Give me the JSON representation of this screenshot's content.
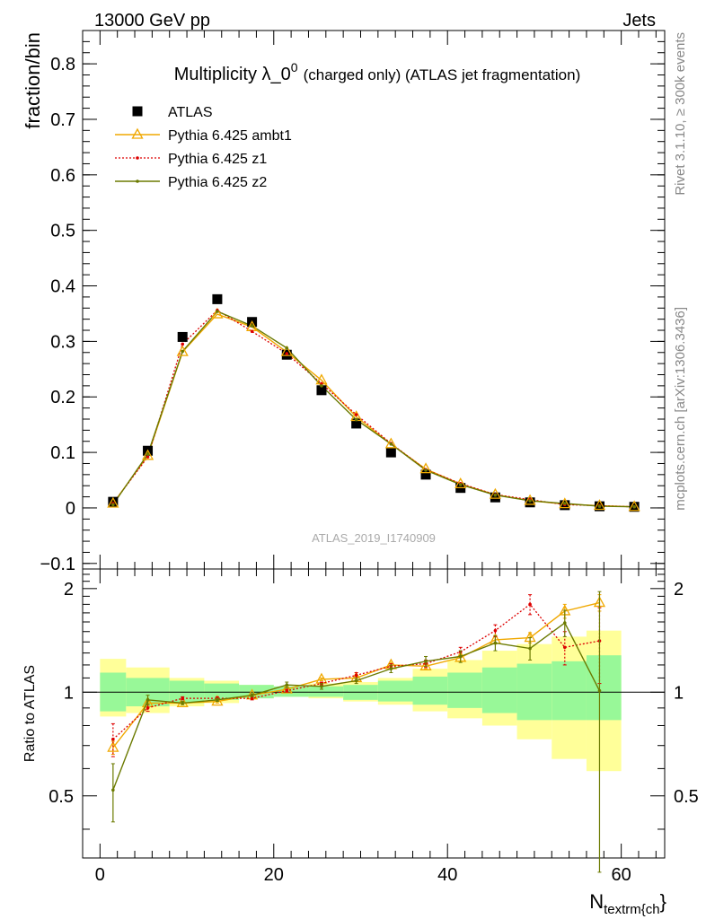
{
  "header": {
    "left": "13000 GeV pp",
    "right": "Jets"
  },
  "side_text": {
    "rivet": "Rivet 3.1.10, ≥ 300k events",
    "mcplots": "mcplots.cern.ch [arXiv:1306.3436]"
  },
  "watermark": "ATLAS_2019_I1740909",
  "colors": {
    "atlas": "#000000",
    "ambt1": "#f0a800",
    "z1": "#dd0000",
    "z2": "#6b7a00",
    "band_inner": "#98f898",
    "band_outer": "#ffff99"
  },
  "chart_data": [
    {
      "type": "scatter",
      "title": "Multiplicity λ_0⁰ (charged only) (ATLAS jet fragmentation)",
      "title_main": "Multiplicity λ_0",
      "title_sup": "0",
      "title_rest": "(charged only) (ATLAS jet fragmentation)",
      "ylabel": "fraction/bin",
      "xlabel_main": "N",
      "xlabel_sub": "textrm{ch",
      "xlabel_end": "}",
      "xlim": [
        -2,
        65
      ],
      "ylim": [
        -0.11,
        0.86
      ],
      "yticks": [
        -0.1,
        0,
        0.1,
        0.2,
        0.3,
        0.4,
        0.5,
        0.6,
        0.7,
        0.8
      ],
      "ytick_labels": [
        "−0.1",
        "0",
        "0.1",
        "0.2",
        "0.3",
        "0.4",
        "0.5",
        "0.6",
        "0.7",
        "0.8"
      ],
      "legend_position": "top-left",
      "x": [
        1.5,
        5.5,
        9.5,
        13.5,
        17.5,
        21.5,
        25.5,
        29.5,
        33.5,
        37.5,
        41.5,
        45.5,
        49.5,
        53.5,
        57.5,
        61.5
      ],
      "series": [
        {
          "name": "ATLAS",
          "key": "atlas",
          "marker": "square",
          "values": [
            0.011,
            0.103,
            0.308,
            0.376,
            0.335,
            0.276,
            0.212,
            0.152,
            0.1,
            0.06,
            0.036,
            0.019,
            0.01,
            0.005,
            0.003,
            0.002
          ]
        },
        {
          "name": "Pythia 6.425 ambt1",
          "key": "ambt1",
          "marker": "triangle",
          "values": [
            0.008,
            0.094,
            0.281,
            0.349,
            0.326,
            0.281,
            0.23,
            0.164,
            0.115,
            0.07,
            0.043,
            0.024,
            0.013,
            0.007,
            0.004,
            0.002
          ]
        },
        {
          "name": "Pythia 6.425 z1",
          "key": "z1",
          "marker": "dot",
          "values": [
            0.008,
            0.092,
            0.295,
            0.356,
            0.318,
            0.278,
            0.224,
            0.168,
            0.116,
            0.069,
            0.044,
            0.024,
            0.015,
            0.006,
            0.004,
            0.002
          ]
        },
        {
          "name": "Pythia 6.425 z2",
          "key": "z2",
          "marker": "dot",
          "values": [
            0.006,
            0.097,
            0.282,
            0.354,
            0.328,
            0.288,
            0.22,
            0.159,
            0.115,
            0.068,
            0.042,
            0.023,
            0.013,
            0.008,
            0.003,
            0.002
          ]
        }
      ]
    },
    {
      "type": "line",
      "ylabel": "Ratio to ATLAS",
      "ylim": [
        0.33,
        2.28
      ],
      "yticks": [
        0.5,
        1,
        2
      ],
      "ytick_labels": [
        "0.5",
        "1",
        "2"
      ],
      "xticks": [
        0,
        20,
        40,
        60
      ],
      "xtick_labels": [
        "0",
        "20",
        "40",
        "60"
      ],
      "x": [
        1.5,
        5.5,
        9.5,
        13.5,
        17.5,
        21.5,
        25.5,
        29.5,
        33.5,
        37.5,
        41.5,
        45.5,
        49.5,
        53.5,
        57.5
      ],
      "bins": [
        [
          0,
          3
        ],
        [
          3,
          8
        ],
        [
          8,
          12
        ],
        [
          12,
          16
        ],
        [
          16,
          20
        ],
        [
          20,
          24
        ],
        [
          24,
          28
        ],
        [
          28,
          32
        ],
        [
          32,
          36
        ],
        [
          36,
          40
        ],
        [
          40,
          44
        ],
        [
          44,
          48
        ],
        [
          48,
          52
        ],
        [
          52,
          56
        ],
        [
          56,
          60
        ]
      ],
      "band_inner": [
        [
          0.88,
          1.14
        ],
        [
          0.91,
          1.1
        ],
        [
          0.93,
          1.08
        ],
        [
          0.95,
          1.06
        ],
        [
          0.96,
          1.05
        ],
        [
          0.97,
          1.04
        ],
        [
          0.97,
          1.04
        ],
        [
          0.95,
          1.05
        ],
        [
          0.94,
          1.08
        ],
        [
          0.92,
          1.11
        ],
        [
          0.9,
          1.14
        ],
        [
          0.87,
          1.18
        ],
        [
          0.83,
          1.21
        ],
        [
          0.83,
          1.23
        ],
        [
          0.83,
          1.28
        ]
      ],
      "band_outer": [
        [
          0.85,
          1.25
        ],
        [
          0.87,
          1.18
        ],
        [
          0.91,
          1.1
        ],
        [
          0.93,
          1.08
        ],
        [
          0.96,
          1.05
        ],
        [
          0.97,
          1.03
        ],
        [
          0.96,
          1.06
        ],
        [
          0.94,
          1.07
        ],
        [
          0.92,
          1.1
        ],
        [
          0.88,
          1.17
        ],
        [
          0.84,
          1.24
        ],
        [
          0.8,
          1.32
        ],
        [
          0.73,
          1.38
        ],
        [
          0.64,
          1.45
        ],
        [
          0.59,
          1.51
        ]
      ],
      "series": [
        {
          "name": "Pythia 6.425 ambt1",
          "key": "ambt1",
          "marker": "triangle",
          "values": [
            0.69,
            0.93,
            0.93,
            0.94,
            0.98,
            1.02,
            1.09,
            1.1,
            1.2,
            1.19,
            1.26,
            1.42,
            1.44,
            1.72,
            1.82
          ],
          "errors": [
            0.03,
            0.01,
            0.01,
            0.01,
            0.01,
            0.01,
            0.01,
            0.01,
            0.02,
            0.02,
            0.03,
            0.04,
            0.05,
            0.08,
            0.1
          ]
        },
        {
          "name": "Pythia 6.425 z1",
          "key": "z1",
          "marker": "dot",
          "values": [
            0.73,
            0.9,
            0.96,
            0.96,
            0.96,
            1.01,
            1.06,
            1.12,
            1.19,
            1.21,
            1.31,
            1.51,
            1.8,
            1.35,
            1.41
          ],
          "errors": [
            0.08,
            0.02,
            0.01,
            0.01,
            0.01,
            0.01,
            0.01,
            0.02,
            0.02,
            0.03,
            0.04,
            0.06,
            0.12,
            0.15,
            0.35
          ]
        },
        {
          "name": "Pythia 6.425 z2",
          "key": "z2",
          "marker": "dot",
          "values": [
            0.52,
            0.95,
            0.93,
            0.95,
            0.98,
            1.05,
            1.04,
            1.08,
            1.17,
            1.23,
            1.27,
            1.39,
            1.34,
            1.59,
            1.01
          ],
          "errors": [
            0.1,
            0.03,
            0.01,
            0.01,
            0.01,
            0.02,
            0.02,
            0.02,
            0.03,
            0.04,
            0.05,
            0.07,
            0.1,
            0.14,
            0.95
          ]
        }
      ]
    }
  ]
}
